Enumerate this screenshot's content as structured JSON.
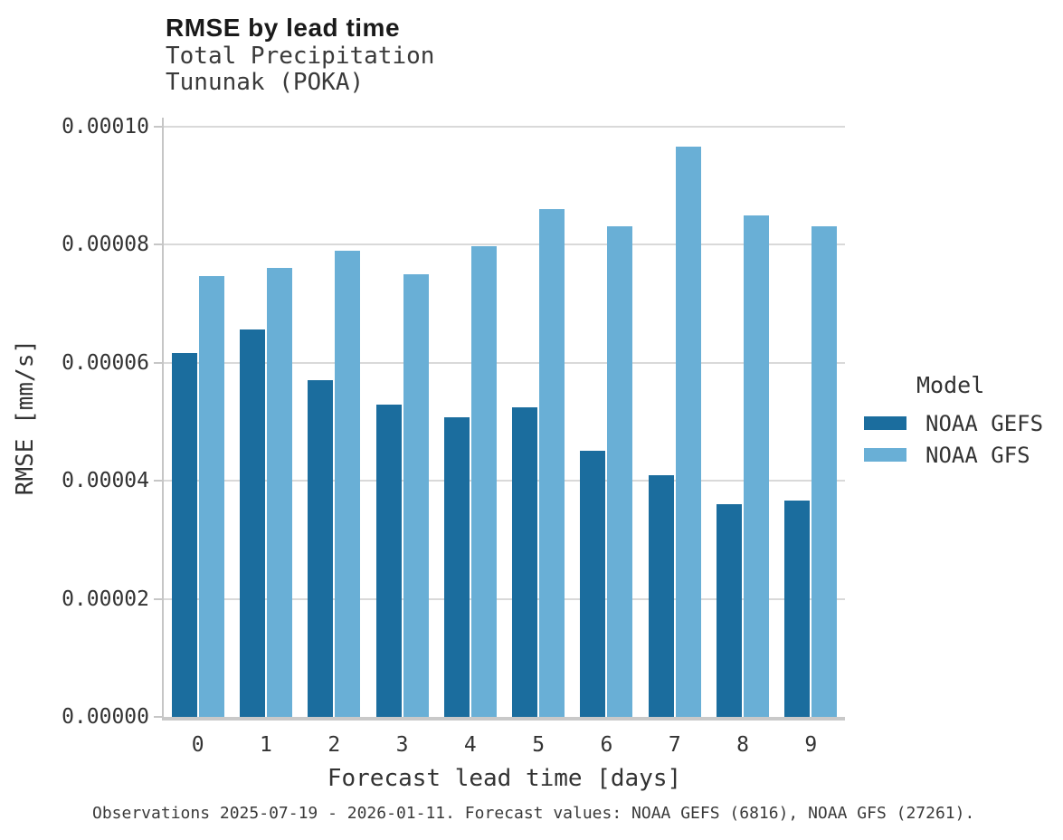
{
  "header": {
    "title": "RMSE by lead time",
    "subtitle_line1": "Total Precipitation",
    "subtitle_line2": "Tununak (POKA)"
  },
  "chart_data": {
    "type": "bar",
    "title": "RMSE by lead time",
    "subtitle": "Total Precipitation / Tununak (POKA)",
    "xlabel": "Forecast lead time [days]",
    "ylabel": "RMSE [mm/s]",
    "categories": [
      "0",
      "1",
      "2",
      "3",
      "4",
      "5",
      "6",
      "7",
      "8",
      "9"
    ],
    "series": [
      {
        "name": "NOAA GEFS",
        "color": "#1b6d9e",
        "values": [
          6.16e-05,
          6.57e-05,
          5.7e-05,
          5.29e-05,
          5.07e-05,
          5.25e-05,
          4.51e-05,
          4.09e-05,
          3.6e-05,
          3.66e-05
        ]
      },
      {
        "name": "NOAA GFS",
        "color": "#69afd6",
        "values": [
          7.47e-05,
          7.61e-05,
          7.9e-05,
          7.5e-05,
          7.97e-05,
          8.61e-05,
          8.32e-05,
          9.66e-05,
          8.5e-05,
          8.31e-05
        ]
      }
    ],
    "ylim": [
      0,
      0.0001
    ],
    "yticks": [
      {
        "value": 0.0,
        "label": "0.00000"
      },
      {
        "value": 2e-05,
        "label": "0.00002"
      },
      {
        "value": 4e-05,
        "label": "0.00004"
      },
      {
        "value": 6e-05,
        "label": "0.00006"
      },
      {
        "value": 8e-05,
        "label": "0.00008"
      },
      {
        "value": 0.0001,
        "label": "0.00010"
      }
    ],
    "grid": "horizontal",
    "legend_title": "Model",
    "legend_position": "right"
  },
  "footer": {
    "caption": "Observations 2025-07-19 - 2026-01-11. Forecast values: NOAA GEFS (6816), NOAA GFS (27261)."
  },
  "colors": {
    "gridline": "#d9d9d9",
    "axis_spine": "#c9c9c9",
    "text": "#333333",
    "title_text": "#1a1a1a"
  }
}
